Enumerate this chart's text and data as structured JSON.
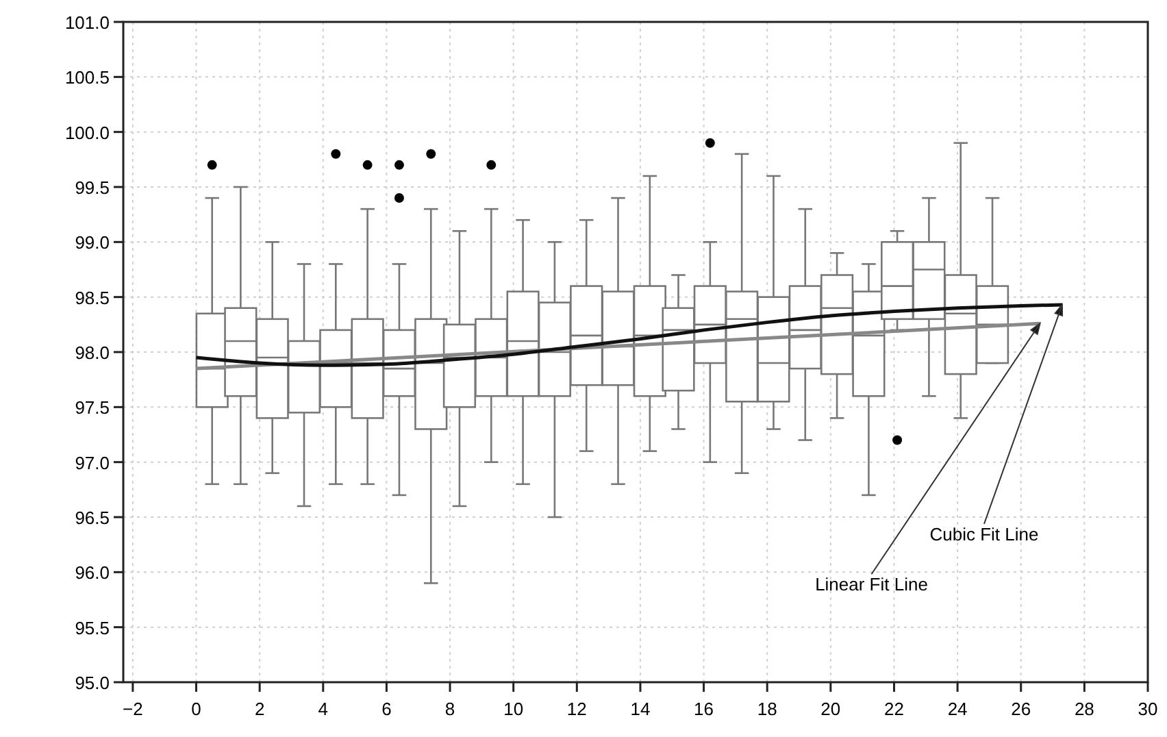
{
  "chart_data": {
    "type": "box",
    "xlim": [
      -2.3,
      30
    ],
    "xticks": [
      -2,
      0,
      2,
      4,
      6,
      8,
      10,
      12,
      14,
      16,
      18,
      20,
      22,
      24,
      26,
      28,
      30
    ],
    "ylim": [
      95,
      101
    ],
    "yticks": [
      {
        "value": 95,
        "label": "95.0"
      },
      {
        "value": 95.5,
        "label": "95.5"
      },
      {
        "value": 96,
        "label": "96.0"
      },
      {
        "value": 96.5,
        "label": "96.5"
      },
      {
        "value": 97,
        "label": "97.0"
      },
      {
        "value": 97.5,
        "label": "97.5"
      },
      {
        "value": 98,
        "label": "98.0"
      },
      {
        "value": 98.5,
        "label": "98.5"
      },
      {
        "value": 99,
        "label": "99.0"
      },
      {
        "value": 99.5,
        "label": "99.5"
      },
      {
        "value": 100,
        "label": "100.0"
      },
      {
        "value": 100.5,
        "label": "100.5"
      },
      {
        "value": 101,
        "label": "101.0"
      }
    ],
    "grid": true,
    "series": [
      {
        "color": "#777777",
        "x": [
          0.5,
          1.4,
          2.4,
          3.4,
          4.4,
          5.4,
          6.4,
          7.4,
          8.3,
          9.3,
          10.3,
          11.3,
          12.3,
          13.3,
          14.3,
          15.2,
          16.2,
          17.2,
          18.2,
          19.2,
          20.2,
          21.2,
          22.1,
          23.1,
          24.1,
          25.1
        ],
        "boxes": [
          {
            "low": 96.8,
            "q1": 97.5,
            "median": 97.85,
            "q3": 98.35,
            "high": 99.4,
            "outliers": [
              99.7
            ]
          },
          {
            "low": 96.8,
            "q1": 97.6,
            "median": 98.1,
            "q3": 98.4,
            "high": 99.5
          },
          {
            "low": 96.9,
            "q1": 97.4,
            "median": 97.95,
            "q3": 98.3,
            "high": 99.0
          },
          {
            "low": 96.6,
            "q1": 97.45,
            "median": 97.9,
            "q3": 98.1,
            "high": 98.8
          },
          {
            "low": 96.8,
            "q1": 97.5,
            "median": 97.9,
            "q3": 98.2,
            "high": 98.8,
            "outliers": [
              99.8
            ]
          },
          {
            "low": 96.8,
            "q1": 97.4,
            "median": 97.9,
            "q3": 98.3,
            "high": 99.3,
            "outliers": [
              99.7
            ]
          },
          {
            "low": 96.7,
            "q1": 97.6,
            "median": 97.85,
            "q3": 98.2,
            "high": 98.8,
            "outliers": [
              99.7,
              99.4
            ]
          },
          {
            "low": 95.9,
            "q1": 97.3,
            "median": 97.9,
            "q3": 98.3,
            "high": 99.3,
            "outliers": [
              99.8
            ]
          },
          {
            "low": 96.6,
            "q1": 97.5,
            "median": 97.95,
            "q3": 98.25,
            "high": 99.1
          },
          {
            "low": 97.0,
            "q1": 97.6,
            "median": 97.95,
            "q3": 98.3,
            "high": 99.3,
            "outliers": [
              99.7
            ]
          },
          {
            "low": 96.8,
            "q1": 97.6,
            "median": 98.1,
            "q3": 98.55,
            "high": 99.2
          },
          {
            "low": 96.5,
            "q1": 97.6,
            "median": 98.0,
            "q3": 98.45,
            "high": 99.0
          },
          {
            "low": 97.1,
            "q1": 97.7,
            "median": 98.15,
            "q3": 98.6,
            "high": 99.2
          },
          {
            "low": 96.8,
            "q1": 97.7,
            "median": 98.05,
            "q3": 98.55,
            "high": 99.4
          },
          {
            "low": 97.1,
            "q1": 97.6,
            "median": 98.15,
            "q3": 98.6,
            "high": 99.6
          },
          {
            "low": 97.3,
            "q1": 97.65,
            "median": 98.2,
            "q3": 98.4,
            "high": 98.7
          },
          {
            "low": 97.0,
            "q1": 97.9,
            "median": 98.25,
            "q3": 98.6,
            "high": 99.0,
            "outliers": [
              99.9
            ]
          },
          {
            "low": 96.9,
            "q1": 97.55,
            "median": 98.3,
            "q3": 98.55,
            "high": 99.8
          },
          {
            "low": 97.3,
            "q1": 97.55,
            "median": 97.9,
            "q3": 98.5,
            "high": 99.6
          },
          {
            "low": 97.2,
            "q1": 97.85,
            "median": 98.2,
            "q3": 98.6,
            "high": 99.3
          },
          {
            "low": 97.4,
            "q1": 97.8,
            "median": 98.4,
            "q3": 98.7,
            "high": 98.9
          },
          {
            "low": 96.7,
            "q1": 97.6,
            "median": 98.15,
            "q3": 98.55,
            "high": 98.8
          },
          {
            "low": 98.2,
            "q1": 98.3,
            "median": 98.6,
            "q3": 99.0,
            "high": 99.1,
            "outliers": [
              97.2
            ]
          },
          {
            "low": 97.6,
            "q1": 98.3,
            "median": 98.75,
            "q3": 99.0,
            "high": 99.4
          },
          {
            "low": 97.4,
            "q1": 97.8,
            "median": 98.35,
            "q3": 98.7,
            "high": 99.9
          },
          {
            "low": 97.9,
            "q1": 97.9,
            "median": 98.25,
            "q3": 98.6,
            "high": 99.4
          }
        ]
      },
      {
        "type": "line",
        "name": "Linear Fit Line",
        "color": "#888888",
        "x": [
          0,
          26.6
        ],
        "values": [
          97.85,
          98.26
        ]
      },
      {
        "type": "line",
        "name": "Cubic Fit Line",
        "color": "#111111",
        "x": [
          0,
          2,
          4,
          6,
          8,
          10,
          12,
          14,
          16,
          18,
          20,
          22,
          24,
          26,
          27.3
        ],
        "values": [
          97.95,
          97.9,
          97.88,
          97.89,
          97.93,
          97.98,
          98.05,
          98.12,
          98.2,
          98.27,
          98.33,
          98.37,
          98.4,
          98.42,
          98.43
        ]
      }
    ]
  }
}
